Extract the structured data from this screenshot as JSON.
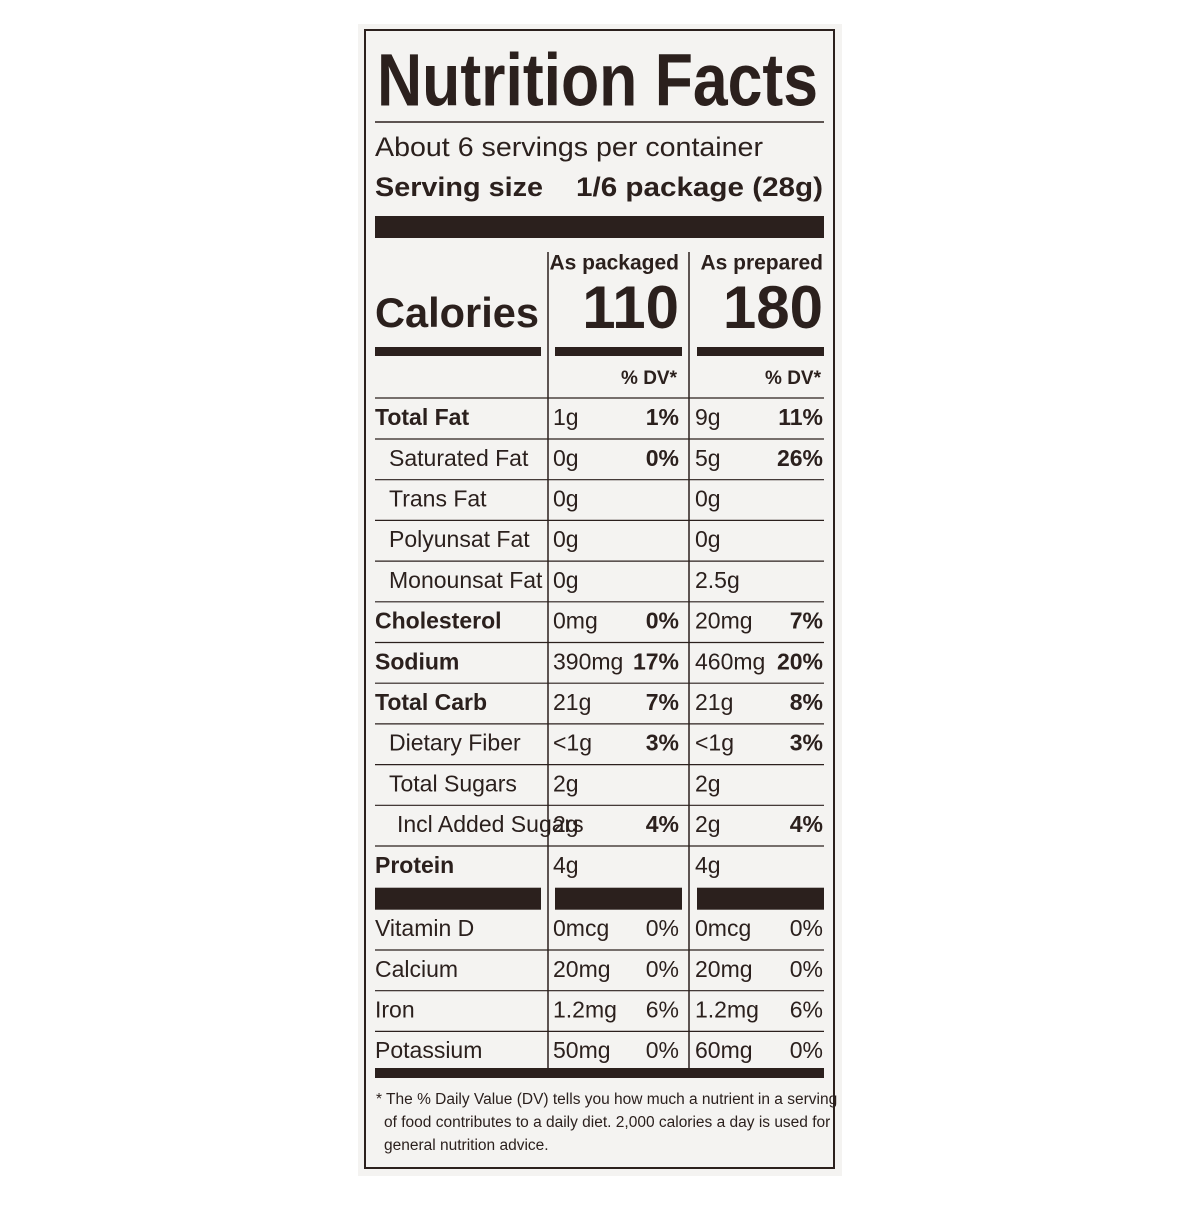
{
  "title": "Nutrition Facts",
  "servings_per_container": "About 6 servings per container",
  "serving_size_label": "Serving size",
  "serving_size": "1/6 package (28g)",
  "calories_label": "Calories",
  "columns": [
    {
      "name": "As packaged",
      "calories": 110,
      "dv_label": "% DV*"
    },
    {
      "name": "As prepared",
      "calories": 180,
      "dv_label": "% DV*"
    }
  ],
  "nutrients": [
    {
      "name": "Total Fat",
      "amounts": [
        "1g",
        "9g"
      ],
      "dv": [
        "1%",
        "11%"
      ],
      "sub": [
        {
          "name": "Saturated Fat",
          "amounts": [
            "0g",
            "5g"
          ],
          "dv": [
            "0%",
            "26%"
          ]
        },
        {
          "name": "Trans Fat",
          "amounts": [
            "0g",
            "0g"
          ]
        },
        {
          "name": "Polyunsat Fat",
          "amounts": [
            "0g",
            "0g"
          ]
        },
        {
          "name": "Monounsat Fat",
          "amounts": [
            "0g",
            "2.5g"
          ]
        }
      ]
    },
    {
      "name": "Cholesterol",
      "amounts": [
        "0mg",
        "20mg"
      ],
      "dv": [
        "0%",
        "7%"
      ]
    },
    {
      "name": "Sodium",
      "amounts": [
        "390mg",
        "460mg"
      ],
      "dv": [
        "17%",
        "20%"
      ]
    },
    {
      "name": "Total Carb",
      "amounts": [
        "21g",
        "21g"
      ],
      "dv": [
        "7%",
        "8%"
      ],
      "sub": [
        {
          "name": "Dietary Fiber",
          "amounts": [
            "<1g",
            "<1g"
          ],
          "dv": [
            "3%",
            "3%"
          ]
        },
        {
          "name": "Total Sugars",
          "amounts": [
            "2g",
            "2g"
          ],
          "sub": [
            {
              "name": "Incl Added Sugars",
              "amounts": [
                "2g",
                "2g"
              ],
              "dv": [
                "4%",
                "4%"
              ]
            }
          ]
        }
      ]
    },
    {
      "name": "Protein",
      "amounts": [
        "4g",
        "4g"
      ]
    }
  ],
  "vitamins": [
    {
      "name": "Vitamin D",
      "amounts": [
        "0mcg",
        "0mcg"
      ],
      "dv": [
        "0%",
        "0%"
      ]
    },
    {
      "name": "Calcium",
      "amounts": [
        "20mg",
        "20mg"
      ],
      "dv": [
        "0%",
        "0%"
      ]
    },
    {
      "name": "Iron",
      "amounts": [
        "1.2mg",
        "1.2mg"
      ],
      "dv": [
        "6%",
        "6%"
      ]
    },
    {
      "name": "Potassium",
      "amounts": [
        "50mg",
        "60mg"
      ],
      "dv": [
        "0%",
        "0%"
      ]
    }
  ],
  "footnote": [
    "* The % Daily Value (DV) tells you how much a nutrient in a serving",
    "of food contributes to a daily diet. 2,000 calories a day is used for",
    "general nutrition advice."
  ]
}
